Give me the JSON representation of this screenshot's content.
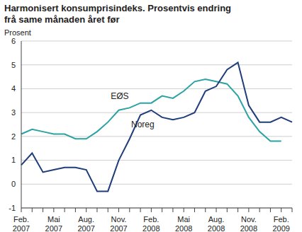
{
  "chart_data": {
    "type": "line",
    "title": "Harmonisert konsumprisindeks. Prosentvis endring frå same månaden året før",
    "y_label": "Prosent",
    "categories": [
      "Feb. 2007",
      null,
      null,
      "Mai 2007",
      null,
      null,
      "Aug. 2007",
      null,
      null,
      "Nov. 2007",
      null,
      null,
      "Feb. 2008",
      null,
      null,
      "Mai 2008",
      null,
      null,
      "Aug. 2008",
      null,
      null,
      "Nov. 2008",
      null,
      null,
      "Feb. 2009",
      null
    ],
    "series": [
      {
        "name": "EØS",
        "color": "#2ba3a3",
        "values": [
          2.1,
          2.3,
          2.2,
          2.1,
          2.1,
          1.9,
          1.9,
          2.2,
          2.6,
          3.1,
          3.2,
          3.4,
          3.4,
          3.7,
          3.6,
          3.9,
          4.3,
          4.4,
          4.3,
          4.2,
          3.7,
          2.8,
          2.2,
          1.8,
          1.8,
          null
        ]
      },
      {
        "name": "Noreg",
        "color": "#1f3d7a",
        "values": [
          0.8,
          1.3,
          0.5,
          0.6,
          0.7,
          0.7,
          0.6,
          -0.3,
          -0.3,
          1.0,
          1.9,
          2.9,
          3.1,
          2.8,
          2.7,
          2.8,
          3.0,
          3.9,
          4.1,
          4.8,
          5.1,
          3.3,
          2.6,
          2.6,
          2.8,
          2.6
        ]
      }
    ],
    "ylim": [
      -1,
      6
    ],
    "yticks": [
      -1,
      0,
      1,
      2,
      3,
      4,
      5,
      6
    ],
    "grid": true
  }
}
